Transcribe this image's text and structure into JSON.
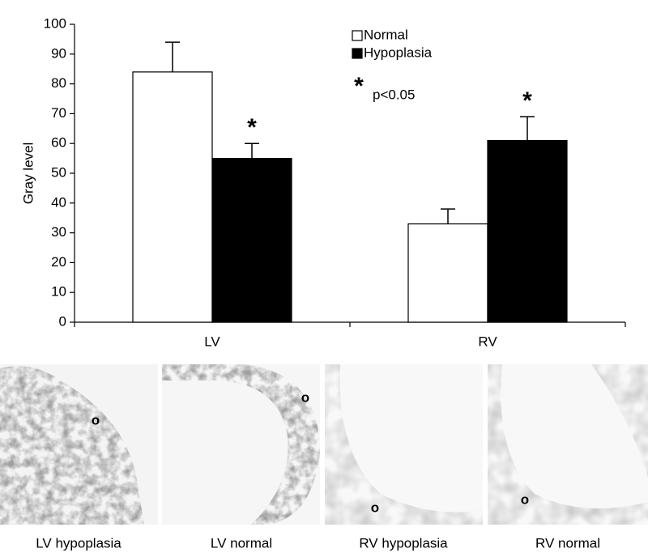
{
  "chart_data": {
    "type": "bar",
    "ylabel": "Gray level",
    "categories": [
      "LV",
      "RV"
    ],
    "series": [
      {
        "name": "Normal",
        "color": "#ffffff",
        "values": [
          84,
          33
        ],
        "errors": [
          10,
          5
        ]
      },
      {
        "name": "Hypoplasia",
        "color": "#000000",
        "values": [
          55,
          61
        ],
        "errors": [
          5,
          8
        ],
        "significant": [
          true,
          true
        ]
      }
    ],
    "ylim": [
      0,
      100
    ],
    "yticks": [
      0,
      10,
      20,
      30,
      40,
      50,
      60,
      70,
      80,
      90,
      100
    ],
    "significance_marker": "*",
    "significance_note": "p<0.05",
    "legend": "upper center"
  },
  "panels": [
    {
      "label": "LV hypoplasia",
      "marker": "o"
    },
    {
      "label": "LV normal",
      "marker": "o"
    },
    {
      "label": "RV hypoplasia",
      "marker": "o"
    },
    {
      "label": "RV normal",
      "marker": "o"
    }
  ]
}
